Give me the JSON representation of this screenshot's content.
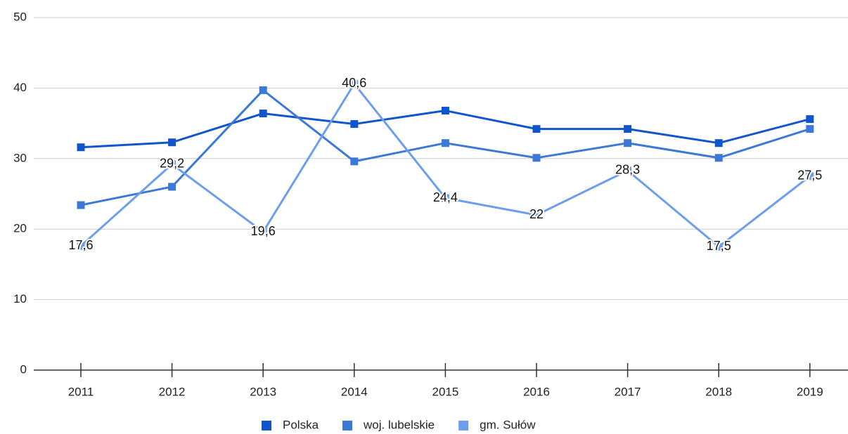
{
  "chart_data": {
    "type": "line",
    "categories": [
      "2011",
      "2012",
      "2013",
      "2014",
      "2015",
      "2016",
      "2017",
      "2018",
      "2019"
    ],
    "series": [
      {
        "name": "Polska",
        "color": "#1155cc",
        "values": [
          31.6,
          32.3,
          36.4,
          34.9,
          36.8,
          34.2,
          34.2,
          32.2,
          35.6
        ]
      },
      {
        "name": "woj. lubelskie",
        "color": "#3c78d8",
        "values": [
          23.4,
          26.0,
          39.7,
          29.6,
          32.2,
          30.1,
          32.2,
          30.1,
          34.2
        ]
      },
      {
        "name": "gm. Sułów",
        "color": "#6d9eeb",
        "values": [
          17.6,
          29.2,
          19.6,
          40.6,
          24.4,
          22,
          28.3,
          17.5,
          27.5
        ],
        "value_labels": [
          "17,6",
          "29,2",
          "19,6",
          "40,6",
          "24,4",
          "22",
          "28,3",
          "17,5",
          "27,5"
        ]
      }
    ],
    "ylim": [
      0,
      50
    ],
    "yticks": [
      0,
      10,
      20,
      30,
      40,
      50
    ],
    "grid": true,
    "legend": "bottom"
  }
}
